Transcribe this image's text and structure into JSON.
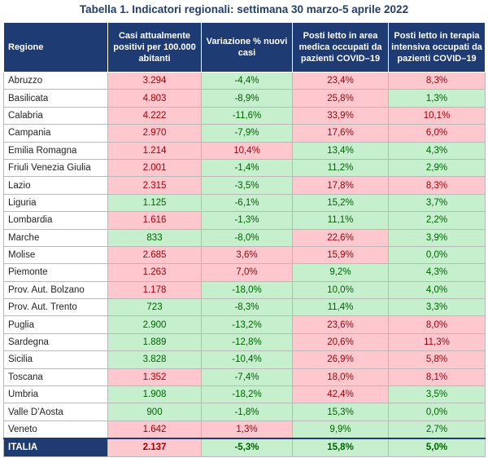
{
  "title": "Tabella 1. Indicatori regionali: settimana 30 marzo-5 aprile 2022",
  "headers": [
    "Regione",
    "Casi attualmente positivi per 100.000 abitanti",
    "Variazione % nuovi casi",
    "Posti letto in area medica occupati da pazienti COVID–19",
    "Posti letto in terapia intensiva occupati da pazienti COVID–19"
  ],
  "colors": {
    "red_bg": "#ffc7ce",
    "red_text": "#9c0006",
    "green_bg": "#c6efce",
    "green_text": "#006100",
    "header_bg": "#1f3b73"
  },
  "rows": [
    {
      "region": "Abruzzo",
      "cells": [
        [
          "3.294",
          "red"
        ],
        [
          "-4,4%",
          "green"
        ],
        [
          "23,4%",
          "red"
        ],
        [
          "8,3%",
          "red"
        ]
      ]
    },
    {
      "region": "Basilicata",
      "cells": [
        [
          "4.803",
          "red"
        ],
        [
          "-8,9%",
          "green"
        ],
        [
          "25,8%",
          "red"
        ],
        [
          "1,3%",
          "green"
        ]
      ]
    },
    {
      "region": "Calabria",
      "cells": [
        [
          "4.222",
          "red"
        ],
        [
          "-11,6%",
          "green"
        ],
        [
          "33,9%",
          "red"
        ],
        [
          "10,1%",
          "red"
        ]
      ]
    },
    {
      "region": "Campania",
      "cells": [
        [
          "2.970",
          "red"
        ],
        [
          "-7,9%",
          "green"
        ],
        [
          "17,6%",
          "red"
        ],
        [
          "6,0%",
          "red"
        ]
      ]
    },
    {
      "region": "Emilia Romagna",
      "cells": [
        [
          "1.214",
          "red"
        ],
        [
          "10,4%",
          "red"
        ],
        [
          "13,4%",
          "green"
        ],
        [
          "4,3%",
          "green"
        ]
      ]
    },
    {
      "region": "Friuli Venezia Giulia",
      "cells": [
        [
          "2.001",
          "red"
        ],
        [
          "-1,4%",
          "green"
        ],
        [
          "11,2%",
          "green"
        ],
        [
          "2,9%",
          "green"
        ]
      ]
    },
    {
      "region": "Lazio",
      "cells": [
        [
          "2.315",
          "red"
        ],
        [
          "-3,5%",
          "green"
        ],
        [
          "17,8%",
          "red"
        ],
        [
          "8,3%",
          "red"
        ]
      ]
    },
    {
      "region": "Liguria",
      "cells": [
        [
          "1.125",
          "green"
        ],
        [
          "-6,1%",
          "green"
        ],
        [
          "15,2%",
          "green"
        ],
        [
          "3,7%",
          "green"
        ]
      ]
    },
    {
      "region": "Lombardia",
      "cells": [
        [
          "1.616",
          "red"
        ],
        [
          "-1,3%",
          "green"
        ],
        [
          "11,1%",
          "green"
        ],
        [
          "2,2%",
          "green"
        ]
      ]
    },
    {
      "region": "Marche",
      "cells": [
        [
          "833",
          "green"
        ],
        [
          "-8,0%",
          "green"
        ],
        [
          "22,6%",
          "red"
        ],
        [
          "3,9%",
          "green"
        ]
      ]
    },
    {
      "region": "Molise",
      "cells": [
        [
          "2.685",
          "red"
        ],
        [
          "3,6%",
          "red"
        ],
        [
          "15,9%",
          "red"
        ],
        [
          "0,0%",
          "green"
        ]
      ]
    },
    {
      "region": "Piemonte",
      "cells": [
        [
          "1.263",
          "red"
        ],
        [
          "7,0%",
          "red"
        ],
        [
          "9,2%",
          "green"
        ],
        [
          "4,3%",
          "green"
        ]
      ]
    },
    {
      "region": "Prov. Aut. Bolzano",
      "cells": [
        [
          "1.178",
          "red"
        ],
        [
          "-18,0%",
          "green"
        ],
        [
          "10,0%",
          "green"
        ],
        [
          "4,0%",
          "green"
        ]
      ]
    },
    {
      "region": "Prov. Aut. Trento",
      "cells": [
        [
          "723",
          "green"
        ],
        [
          "-8,3%",
          "green"
        ],
        [
          "11,4%",
          "green"
        ],
        [
          "3,3%",
          "green"
        ]
      ]
    },
    {
      "region": "Puglia",
      "cells": [
        [
          "2.900",
          "green"
        ],
        [
          "-13,2%",
          "green"
        ],
        [
          "23,6%",
          "red"
        ],
        [
          "8,0%",
          "red"
        ]
      ]
    },
    {
      "region": "Sardegna",
      "cells": [
        [
          "1.889",
          "green"
        ],
        [
          "-12,8%",
          "green"
        ],
        [
          "20,6%",
          "red"
        ],
        [
          "11,3%",
          "red"
        ]
      ]
    },
    {
      "region": "Sicilia",
      "cells": [
        [
          "3.828",
          "green"
        ],
        [
          "-10,4%",
          "green"
        ],
        [
          "26,9%",
          "red"
        ],
        [
          "5,8%",
          "red"
        ]
      ]
    },
    {
      "region": "Toscana",
      "cells": [
        [
          "1.352",
          "red"
        ],
        [
          "-7,4%",
          "green"
        ],
        [
          "18,0%",
          "red"
        ],
        [
          "8,1%",
          "red"
        ]
      ]
    },
    {
      "region": "Umbria",
      "cells": [
        [
          "1.908",
          "green"
        ],
        [
          "-18,2%",
          "green"
        ],
        [
          "42,4%",
          "red"
        ],
        [
          "3,5%",
          "green"
        ]
      ]
    },
    {
      "region": "Valle D'Aosta",
      "cells": [
        [
          "900",
          "green"
        ],
        [
          "-1,8%",
          "green"
        ],
        [
          "15,3%",
          "green"
        ],
        [
          "0,0%",
          "green"
        ]
      ]
    },
    {
      "region": "Veneto",
      "cells": [
        [
          "1.642",
          "red"
        ],
        [
          "1,3%",
          "red"
        ],
        [
          "9,9%",
          "green"
        ],
        [
          "2,7%",
          "green"
        ]
      ]
    }
  ],
  "total": {
    "region": "ITALIA",
    "cells": [
      [
        "2.137",
        "red"
      ],
      [
        "-5,3%",
        "green"
      ],
      [
        "15,8%",
        "green"
      ],
      [
        "5,0%",
        "green"
      ]
    ]
  }
}
